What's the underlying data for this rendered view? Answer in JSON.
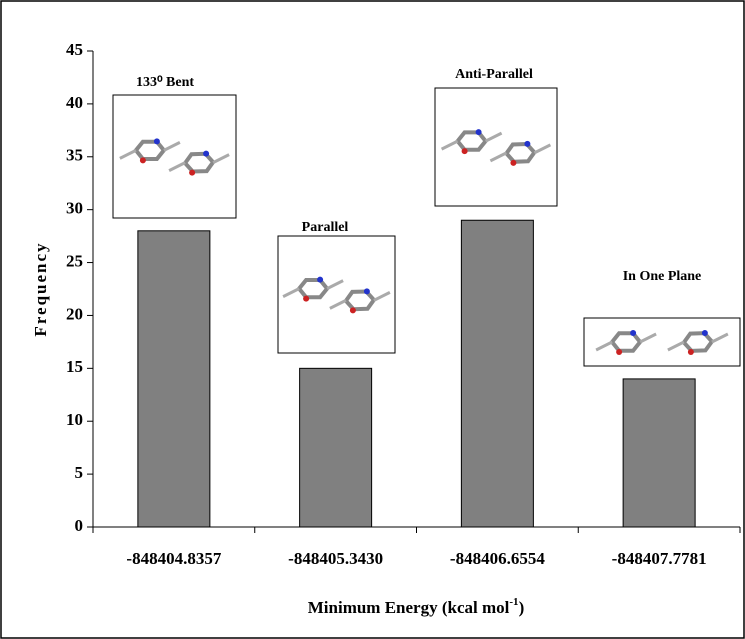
{
  "chart_data": {
    "type": "bar",
    "categories": [
      "-848404.8357",
      "-848405.3430",
      "-848406.6554",
      "-848407.7781"
    ],
    "values": [
      28,
      15,
      29,
      14
    ],
    "color": "#808080",
    "ylim": [
      0,
      45
    ],
    "yticks": [
      0,
      5,
      10,
      15,
      20,
      25,
      30,
      35,
      40,
      45
    ],
    "y_label": "Frequency",
    "x_label": "Minimum Energy (kcal mol",
    "x_label_sup": "-1",
    "x_label_end": ")",
    "annotations": [
      "133⁰ Bent",
      "Parallel",
      "Anti-Parallel",
      "In One Plane"
    ],
    "grid": false
  }
}
